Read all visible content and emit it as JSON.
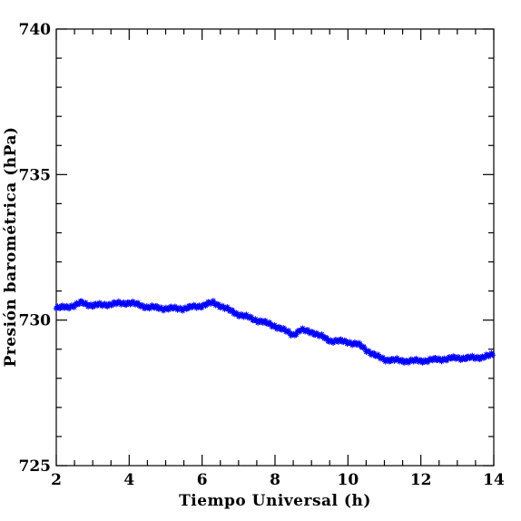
{
  "chart_data": {
    "type": "scatter",
    "marker": "asterisk",
    "color": "#0000ff",
    "xlabel": "Tiempo Universal (h)",
    "ylabel": "Presión barométrica (hPa)",
    "xlim": [
      2,
      14
    ],
    "ylim": [
      725,
      740
    ],
    "x_ticks": [
      2,
      4,
      6,
      8,
      10,
      12,
      14
    ],
    "y_ticks": [
      725,
      730,
      735,
      740
    ],
    "x_tick_labels": [
      "2",
      "4",
      "6",
      "8",
      "10",
      "12",
      "14"
    ],
    "y_tick_labels": [
      "725",
      "730",
      "735",
      "740"
    ],
    "grid": false,
    "series": [
      {
        "x": [
          2.0,
          2.5,
          2.7,
          3.0,
          3.5,
          4.0,
          4.5,
          5.0,
          5.5,
          6.0,
          6.3,
          6.5,
          6.8,
          7.0,
          7.5,
          8.0,
          8.5,
          8.7,
          9.0,
          9.5,
          10.0,
          10.3,
          10.6,
          10.8,
          11.0,
          11.5,
          12.0,
          12.5,
          13.0,
          13.5,
          14.0
        ],
        "y": [
          730.4,
          730.5,
          730.6,
          730.5,
          730.55,
          730.6,
          730.45,
          730.4,
          730.4,
          730.5,
          730.6,
          730.5,
          730.3,
          730.2,
          730.0,
          729.8,
          729.5,
          729.65,
          729.6,
          729.3,
          729.25,
          729.15,
          728.9,
          728.75,
          728.65,
          728.6,
          728.6,
          728.65,
          728.7,
          728.7,
          728.8
        ]
      }
    ]
  }
}
